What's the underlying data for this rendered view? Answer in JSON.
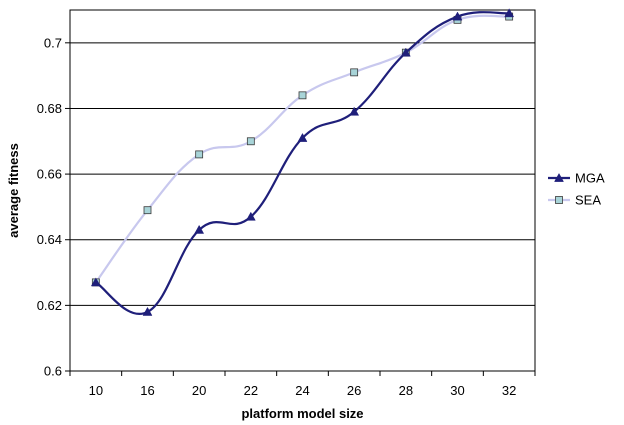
{
  "chart_data": {
    "type": "line",
    "title": "",
    "xlabel": "platform model size",
    "ylabel": "average fitness",
    "categories": [
      "10",
      "16",
      "20",
      "22",
      "24",
      "26",
      "28",
      "30",
      "32"
    ],
    "ylim": [
      0.6,
      0.71
    ],
    "yticks": [
      "0.6",
      "0.62",
      "0.64",
      "0.66",
      "0.68",
      "0.7"
    ],
    "grid": "horizontal",
    "legend_position": "right",
    "series": [
      {
        "name": "MGA",
        "color": "#1f1f7a",
        "marker": "triangle",
        "values": [
          0.627,
          0.618,
          0.643,
          0.647,
          0.671,
          0.679,
          0.697,
          0.708,
          0.709
        ]
      },
      {
        "name": "SEA",
        "color": "#c8c8ee",
        "marker": "square",
        "marker_fill": "#a8d4d8",
        "values": [
          0.627,
          0.649,
          0.666,
          0.67,
          0.684,
          0.691,
          0.697,
          0.707,
          0.708
        ]
      }
    ]
  }
}
